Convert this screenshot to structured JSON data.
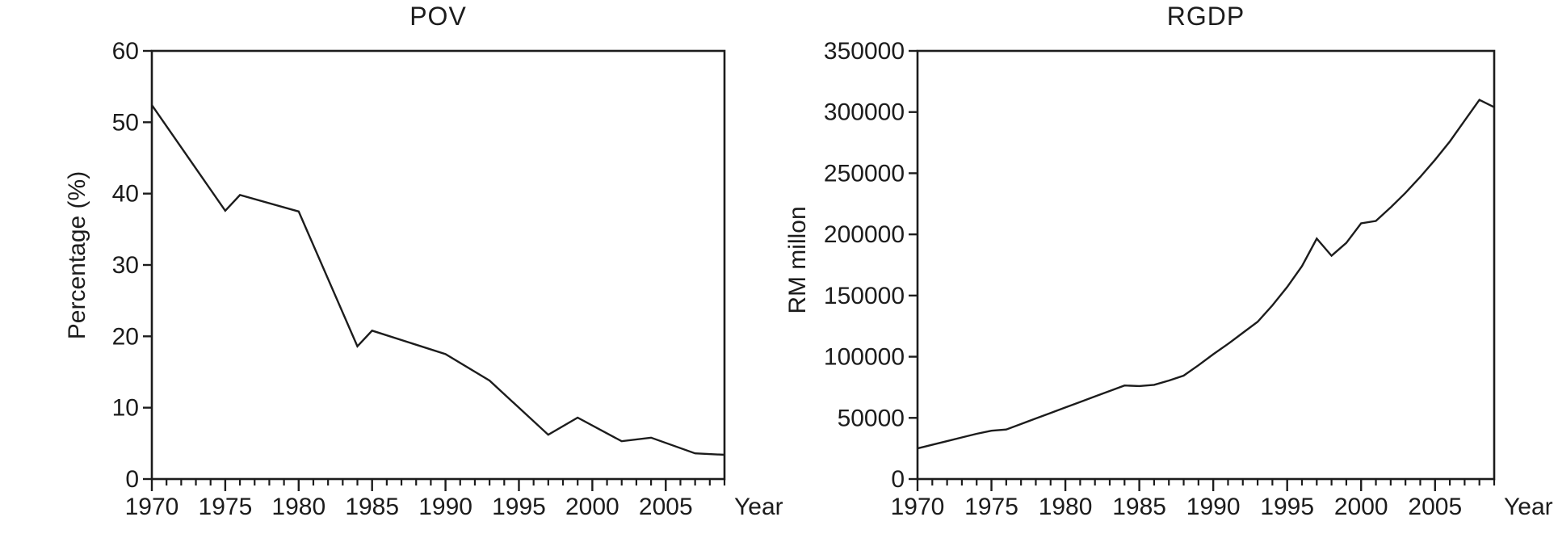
{
  "figure": {
    "background": "#ffffff",
    "line_color": "#1c1c1c"
  },
  "chart_data": [
    {
      "id": "pov",
      "type": "line",
      "title": "POV",
      "xlabel": "Year",
      "ylabel": "Percentage (%)",
      "xlim": [
        1970,
        2009
      ],
      "ylim": [
        0,
        60
      ],
      "yticks": [
        0,
        10,
        20,
        30,
        40,
        50,
        60
      ],
      "xticks_major": [
        1970,
        1975,
        1980,
        1985,
        1990,
        1995,
        2000,
        2005
      ],
      "xtick_minor_step": 1,
      "grid": false,
      "legend": "none",
      "line_color": "#1c1c1c",
      "series": [
        {
          "name": "POV",
          "points": [
            [
              1970,
              52.4
            ],
            [
              1975,
              37.6
            ],
            [
              1976,
              39.8
            ],
            [
              1980,
              37.5
            ],
            [
              1984,
              18.6
            ],
            [
              1985,
              20.8
            ],
            [
              1990,
              17.5
            ],
            [
              1993,
              13.8
            ],
            [
              1997,
              6.2
            ],
            [
              1999,
              8.6
            ],
            [
              2002,
              5.3
            ],
            [
              2004,
              5.8
            ],
            [
              2007,
              3.6
            ],
            [
              2009,
              3.4
            ]
          ]
        }
      ]
    },
    {
      "id": "rgdp",
      "type": "line",
      "title": "RGDP",
      "xlabel": "Year",
      "ylabel": "RM millon",
      "xlim": [
        1970,
        2009
      ],
      "ylim": [
        0,
        350000
      ],
      "yticks": [
        0,
        50000,
        100000,
        150000,
        200000,
        250000,
        300000,
        350000
      ],
      "xticks_major": [
        1970,
        1975,
        1980,
        1985,
        1990,
        1995,
        2000,
        2005
      ],
      "xtick_minor_step": 1,
      "grid": false,
      "legend": "none",
      "line_color": "#1c1c1c",
      "series": [
        {
          "name": "RGDP",
          "points": [
            [
              1970,
              25000
            ],
            [
              1971,
              28000
            ],
            [
              1972,
              31000
            ],
            [
              1973,
              34000
            ],
            [
              1974,
              37000
            ],
            [
              1975,
              39500
            ],
            [
              1976,
              40500
            ],
            [
              1977,
              45000
            ],
            [
              1978,
              49500
            ],
            [
              1979,
              54000
            ],
            [
              1980,
              58500
            ],
            [
              1981,
              63000
            ],
            [
              1982,
              67500
            ],
            [
              1983,
              72000
            ],
            [
              1984,
              76500
            ],
            [
              1985,
              76000
            ],
            [
              1986,
              77000
            ],
            [
              1987,
              80500
            ],
            [
              1988,
              84500
            ],
            [
              1989,
              93000
            ],
            [
              1990,
              102000
            ],
            [
              1991,
              110500
            ],
            [
              1992,
              119500
            ],
            [
              1993,
              128500
            ],
            [
              1994,
              142000
            ],
            [
              1995,
              157000
            ],
            [
              1996,
              174000
            ],
            [
              1997,
              196500
            ],
            [
              1998,
              182500
            ],
            [
              1999,
              193000
            ],
            [
              2000,
              209000
            ],
            [
              2001,
              211000
            ],
            [
              2002,
              222000
            ],
            [
              2003,
              234000
            ],
            [
              2004,
              247000
            ],
            [
              2005,
              261000
            ],
            [
              2006,
              276000
            ],
            [
              2007,
              293000
            ],
            [
              2008,
              310000
            ],
            [
              2009,
              304000
            ]
          ]
        }
      ]
    }
  ]
}
